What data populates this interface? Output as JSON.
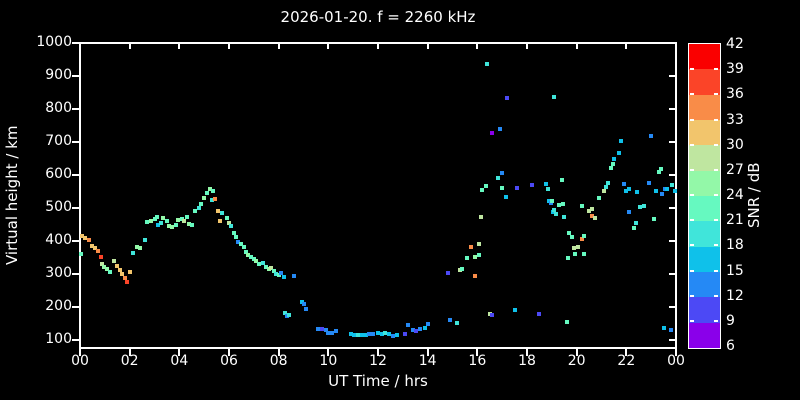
{
  "title": "2026-01-20. f = 2260 kHz",
  "axes": {
    "x_label": "UT Time / hrs",
    "y_label": "Virtual height / km",
    "x_tick_hours": [
      0,
      2,
      4,
      6,
      8,
      10,
      12,
      14,
      16,
      18,
      20,
      22,
      24
    ],
    "x_tick_labels": [
      "00",
      "02",
      "04",
      "06",
      "08",
      "10",
      "12",
      "14",
      "16",
      "18",
      "20",
      "22",
      "00"
    ],
    "y_tick_values": [
      100,
      200,
      300,
      400,
      500,
      600,
      700,
      800,
      900,
      1000
    ],
    "y_tick_labels": [
      "100",
      "200",
      "300",
      "400",
      "500",
      "600",
      "700",
      "800",
      "900",
      "1000"
    ],
    "xlim": [
      0,
      24
    ],
    "ylim": [
      75,
      1000
    ]
  },
  "colorbar": {
    "label": "SNR / dB",
    "min": 6,
    "max": 42,
    "step": 3,
    "tick_labels": [
      "42",
      "39",
      "36",
      "33",
      "30",
      "27",
      "24",
      "21",
      "18",
      "15",
      "12",
      "9",
      "6"
    ],
    "colors_low_to_high": [
      "#8a00ea",
      "#4c49f5",
      "#2589f5",
      "#0fc1ea",
      "#40e5da",
      "#66f9c0",
      "#93f8a8",
      "#bfe6a0",
      "#f2c56c",
      "#f98c48",
      "#fb4428",
      "#fa0000"
    ]
  },
  "chart_data": {
    "type": "scatter",
    "title": "2026-01-20. f = 2260 kHz",
    "xlabel": "UT Time / hrs",
    "ylabel": "Virtual height / km",
    "color_label": "SNR / dB",
    "xlim": [
      0,
      24
    ],
    "ylim": [
      75,
      1000
    ],
    "grid": false,
    "marker": "square",
    "points_format": [
      "ut_hour",
      "virtual_height_km",
      "snr_db"
    ],
    "points": [
      [
        0.02,
        361,
        22.5
      ],
      [
        0.1,
        415,
        31.5
      ],
      [
        0.2,
        409,
        31.5
      ],
      [
        0.35,
        403,
        34.5
      ],
      [
        0.5,
        385,
        31.5
      ],
      [
        0.62,
        379,
        31.5
      ],
      [
        0.73,
        370,
        34.5
      ],
      [
        0.83,
        352,
        37.5
      ],
      [
        0.88,
        330,
        28.5
      ],
      [
        0.98,
        321,
        25.5
      ],
      [
        1.08,
        315,
        25.5
      ],
      [
        1.2,
        306,
        22.5
      ],
      [
        1.35,
        339,
        28.5
      ],
      [
        1.48,
        324,
        31.5
      ],
      [
        1.6,
        312,
        31.5
      ],
      [
        1.7,
        300,
        31.5
      ],
      [
        1.8,
        288,
        34.5
      ],
      [
        1.9,
        276,
        37.5
      ],
      [
        2.0,
        306,
        31.5
      ],
      [
        2.15,
        364,
        19.5
      ],
      [
        2.3,
        382,
        25.5
      ],
      [
        2.42,
        379,
        25.5
      ],
      [
        2.6,
        403,
        19.5
      ],
      [
        2.7,
        457,
        22.5
      ],
      [
        2.85,
        461,
        25.5
      ],
      [
        3.0,
        466,
        22.5
      ],
      [
        3.1,
        472,
        22.5
      ],
      [
        3.15,
        448,
        16.5
      ],
      [
        3.25,
        455,
        19.5
      ],
      [
        3.35,
        470,
        25.5
      ],
      [
        3.5,
        460,
        22.5
      ],
      [
        3.6,
        445,
        25.5
      ],
      [
        3.72,
        442,
        25.5
      ],
      [
        3.85,
        448,
        22.5
      ],
      [
        3.95,
        463,
        25.5
      ],
      [
        4.1,
        466,
        22.5
      ],
      [
        4.2,
        460,
        28.5
      ],
      [
        4.3,
        472,
        22.5
      ],
      [
        4.4,
        451,
        25.5
      ],
      [
        4.5,
        448,
        22.5
      ],
      [
        4.65,
        490,
        22.5
      ],
      [
        4.78,
        500,
        19.5
      ],
      [
        4.88,
        512,
        22.5
      ],
      [
        4.98,
        530,
        25.5
      ],
      [
        5.1,
        545,
        22.5
      ],
      [
        5.22,
        557,
        25.5
      ],
      [
        5.35,
        551,
        22.5
      ],
      [
        5.3,
        524,
        19.5
      ],
      [
        5.45,
        527,
        34.5
      ],
      [
        5.55,
        490,
        31.5
      ],
      [
        5.62,
        460,
        31.5
      ],
      [
        5.7,
        485,
        19.5
      ],
      [
        5.9,
        470,
        22.5
      ],
      [
        6.0,
        455,
        28.5
      ],
      [
        6.1,
        445,
        19.5
      ],
      [
        6.2,
        425,
        22.5
      ],
      [
        6.3,
        412,
        22.5
      ],
      [
        6.38,
        397,
        13.5
      ],
      [
        6.48,
        390,
        22.5
      ],
      [
        6.6,
        380,
        22.5
      ],
      [
        6.7,
        365,
        22.5
      ],
      [
        6.78,
        358,
        25.5
      ],
      [
        6.9,
        352,
        22.5
      ],
      [
        7.0,
        345,
        22.5
      ],
      [
        7.1,
        338,
        25.5
      ],
      [
        7.2,
        330,
        22.5
      ],
      [
        7.35,
        333,
        19.5
      ],
      [
        7.5,
        322,
        22.5
      ],
      [
        7.6,
        315,
        25.5
      ],
      [
        7.7,
        318,
        28.5
      ],
      [
        7.8,
        308,
        22.5
      ],
      [
        7.9,
        300,
        19.5
      ],
      [
        8.0,
        297,
        22.5
      ],
      [
        8.1,
        303,
        13.5
      ],
      [
        8.2,
        290,
        16.5
      ],
      [
        8.25,
        182,
        19.5
      ],
      [
        8.33,
        173,
        13.5
      ],
      [
        8.42,
        176,
        19.5
      ],
      [
        8.6,
        294,
        13.5
      ],
      [
        8.95,
        213,
        16.5
      ],
      [
        9.02,
        207,
        13.5
      ],
      [
        9.1,
        194,
        13.5
      ],
      [
        9.6,
        134,
        13.5
      ],
      [
        9.75,
        132,
        10.5
      ],
      [
        9.9,
        129,
        13.5
      ],
      [
        10.0,
        122,
        13.5
      ],
      [
        10.15,
        119,
        13.5
      ],
      [
        10.3,
        127,
        13.5
      ],
      [
        10.9,
        116,
        16.5
      ],
      [
        11.05,
        114,
        16.5
      ],
      [
        11.2,
        113,
        19.5
      ],
      [
        11.35,
        114,
        16.5
      ],
      [
        11.5,
        115,
        16.5
      ],
      [
        11.65,
        117,
        13.5
      ],
      [
        11.8,
        118,
        13.5
      ],
      [
        12.0,
        119,
        16.5
      ],
      [
        12.15,
        117,
        16.5
      ],
      [
        12.3,
        120,
        19.5
      ],
      [
        12.45,
        117,
        16.5
      ],
      [
        12.6,
        112,
        13.5
      ],
      [
        12.75,
        113,
        16.5
      ],
      [
        13.1,
        118,
        10.5
      ],
      [
        13.2,
        145,
        13.5
      ],
      [
        13.4,
        131,
        13.5
      ],
      [
        13.55,
        128,
        10.5
      ],
      [
        13.7,
        133,
        13.5
      ],
      [
        13.9,
        136,
        16.5
      ],
      [
        14.0,
        148,
        13.5
      ],
      [
        14.8,
        303,
        10.5
      ],
      [
        14.9,
        161,
        13.5
      ],
      [
        15.2,
        152,
        19.5
      ],
      [
        15.3,
        312,
        28.5
      ],
      [
        15.4,
        315,
        22.5
      ],
      [
        15.6,
        348,
        22.5
      ],
      [
        15.9,
        351,
        25.5
      ],
      [
        16.05,
        357,
        22.5
      ],
      [
        15.75,
        380,
        34.5
      ],
      [
        16.05,
        390,
        28.5
      ],
      [
        15.9,
        294,
        34.5
      ],
      [
        16.15,
        473,
        28.5
      ],
      [
        16.2,
        555,
        22.5
      ],
      [
        16.35,
        567,
        22.5
      ],
      [
        16.4,
        936,
        19.5
      ],
      [
        16.6,
        727,
        7.5
      ],
      [
        16.9,
        739,
        13.5
      ],
      [
        16.85,
        591,
        19.5
      ],
      [
        17.0,
        606,
        13.5
      ],
      [
        17.0,
        560,
        22.5
      ],
      [
        17.15,
        533,
        16.5
      ],
      [
        17.2,
        833,
        10.5
      ],
      [
        16.5,
        177,
        28.5
      ],
      [
        16.6,
        176,
        10.5
      ],
      [
        17.5,
        191,
        16.5
      ],
      [
        17.6,
        560,
        10.5
      ],
      [
        18.2,
        570,
        10.5
      ],
      [
        18.5,
        179,
        10.5
      ],
      [
        18.75,
        573,
        16.5
      ],
      [
        18.85,
        558,
        19.5
      ],
      [
        18.9,
        521,
        16.5
      ],
      [
        18.95,
        515,
        13.5
      ],
      [
        19.0,
        521,
        22.5
      ],
      [
        19.05,
        488,
        16.5
      ],
      [
        19.1,
        494,
        19.5
      ],
      [
        19.15,
        482,
        19.5
      ],
      [
        19.1,
        836,
        19.5
      ],
      [
        19.3,
        509,
        22.5
      ],
      [
        19.45,
        512,
        22.5
      ],
      [
        19.4,
        585,
        22.5
      ],
      [
        19.5,
        473,
        19.5
      ],
      [
        19.6,
        155,
        22.5
      ],
      [
        19.65,
        348,
        22.5
      ],
      [
        19.7,
        424,
        22.5
      ],
      [
        19.8,
        412,
        22.5
      ],
      [
        19.9,
        379,
        28.5
      ],
      [
        20.05,
        382,
        28.5
      ],
      [
        19.95,
        361,
        22.5
      ],
      [
        20.3,
        361,
        22.5
      ],
      [
        20.2,
        406,
        34.5
      ],
      [
        20.3,
        415,
        22.5
      ],
      [
        20.2,
        506,
        22.5
      ],
      [
        20.5,
        491,
        28.5
      ],
      [
        20.62,
        497,
        28.5
      ],
      [
        20.6,
        476,
        34.5
      ],
      [
        20.75,
        470,
        28.5
      ],
      [
        20.9,
        530,
        22.5
      ],
      [
        21.1,
        551,
        28.5
      ],
      [
        21.2,
        564,
        19.5
      ],
      [
        21.27,
        576,
        19.5
      ],
      [
        21.4,
        621,
        22.5
      ],
      [
        21.45,
        633,
        22.5
      ],
      [
        21.52,
        648,
        16.5
      ],
      [
        21.7,
        667,
        16.5
      ],
      [
        21.8,
        703,
        16.5
      ],
      [
        21.9,
        573,
        13.5
      ],
      [
        22.0,
        551,
        16.5
      ],
      [
        22.12,
        558,
        16.5
      ],
      [
        22.1,
        488,
        13.5
      ],
      [
        22.3,
        439,
        22.5
      ],
      [
        22.4,
        455,
        19.5
      ],
      [
        22.42,
        548,
        16.5
      ],
      [
        22.55,
        503,
        19.5
      ],
      [
        22.7,
        506,
        19.5
      ],
      [
        22.9,
        576,
        13.5
      ],
      [
        23.0,
        718,
        13.5
      ],
      [
        23.1,
        467,
        22.5
      ],
      [
        23.2,
        551,
        16.5
      ],
      [
        23.3,
        609,
        22.5
      ],
      [
        23.38,
        618,
        22.5
      ],
      [
        23.42,
        542,
        13.5
      ],
      [
        23.55,
        556,
        13.5
      ],
      [
        23.65,
        558,
        16.5
      ],
      [
        23.85,
        570,
        19.5
      ],
      [
        23.95,
        552,
        16.5
      ],
      [
        23.5,
        136,
        16.5
      ],
      [
        23.8,
        130,
        13.5
      ]
    ]
  }
}
